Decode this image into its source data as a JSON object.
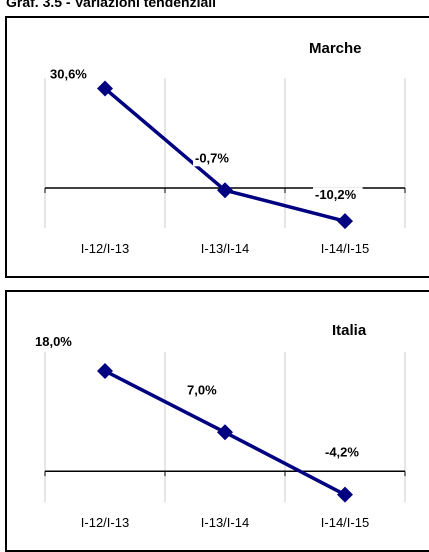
{
  "page": {
    "title": "Graf. 3.5 - Variazioni tendenziali"
  },
  "colors": {
    "series": "#000080",
    "axis": "#000000",
    "grid": "#cccccc"
  },
  "chart_data": [
    {
      "type": "line",
      "title": "Marche",
      "categories": [
        "I-12/I-13",
        "I-13/I-14",
        "I-14/I-15"
      ],
      "values": [
        30.6,
        -0.7,
        -10.2
      ],
      "data_labels": [
        "30,6%",
        "-0,7%",
        "-10,2%"
      ],
      "ylim": [
        -20,
        40
      ]
    },
    {
      "type": "line",
      "title": "Italia",
      "categories": [
        "I-12/I-13",
        "I-13/I-14",
        "I-14/I-15"
      ],
      "values": [
        18.0,
        7.0,
        -4.2
      ],
      "data_labels": [
        "18,0%",
        "7,0%",
        "-4,2%"
      ],
      "ylim": [
        -10,
        25
      ]
    }
  ]
}
